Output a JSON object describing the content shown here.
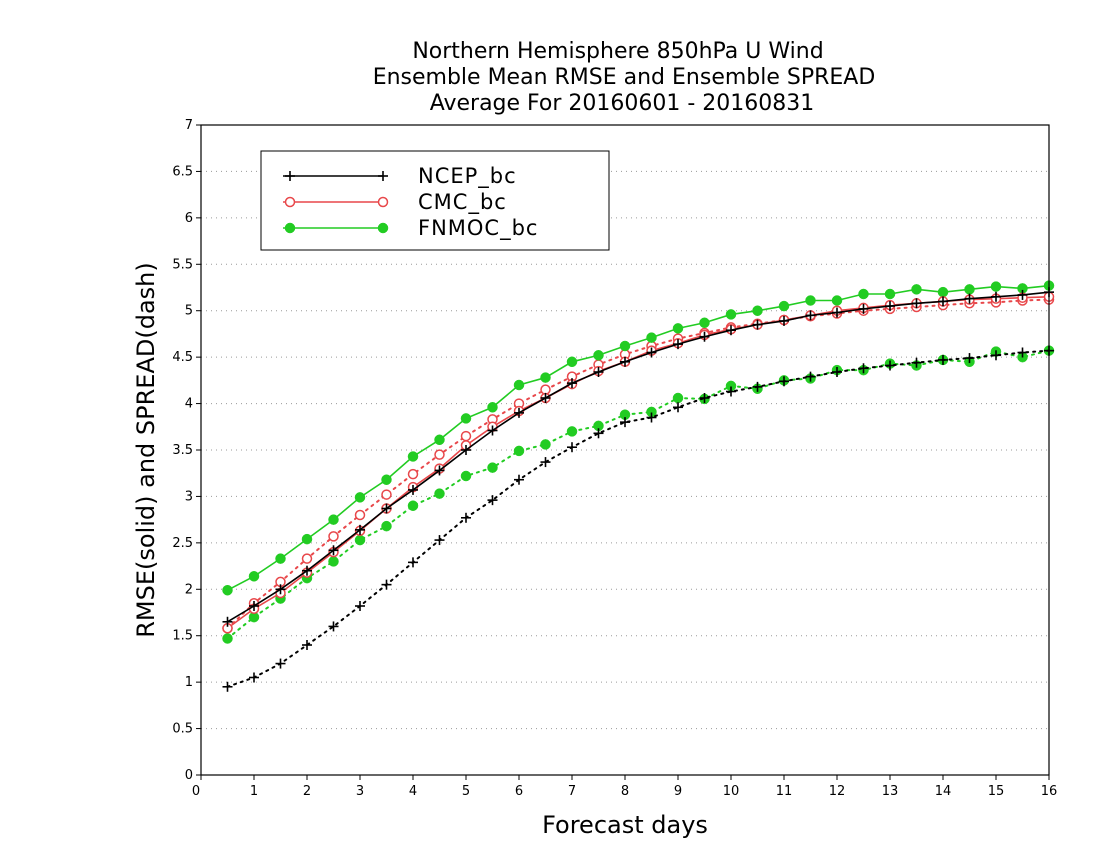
{
  "chart_data": {
    "type": "line",
    "title_lines": [
      "Northern Hemisphere 850hPa U Wind",
      "Ensemble Mean RMSE and Ensemble SPREAD",
      "Average For 20160601 - 20160831"
    ],
    "xlabel": "Forecast days",
    "ylabel": "RMSE(solid) and SPREAD(dash)",
    "xlim": [
      0,
      16
    ],
    "ylim": [
      0,
      7
    ],
    "x_ticks": [
      "0",
      "1",
      "2",
      "3",
      "4",
      "5",
      "6",
      "7",
      "8",
      "9",
      "10",
      "11",
      "12",
      "13",
      "14",
      "15",
      "16"
    ],
    "y_ticks": [
      "0",
      "0.5",
      "1",
      "1.5",
      "2",
      "2.5",
      "3",
      "3.5",
      "4",
      "4.5",
      "5",
      "5.5",
      "6",
      "6.5",
      "7"
    ],
    "grid": "horizontal dotted",
    "legend_position": "top-left",
    "x": [
      0.5,
      1,
      1.5,
      2,
      2.5,
      3,
      3.5,
      4,
      4.5,
      5,
      5.5,
      6,
      6.5,
      7,
      7.5,
      8,
      8.5,
      9,
      9.5,
      10,
      10.5,
      11,
      11.5,
      12,
      12.5,
      13,
      13.5,
      14,
      14.5,
      15,
      15.5,
      16
    ],
    "series": [
      {
        "name": "NCEP_bc",
        "color": "#000000",
        "marker": "plus",
        "rmse": [
          1.65,
          1.82,
          2.0,
          2.2,
          2.42,
          2.64,
          2.87,
          3.07,
          3.28,
          3.5,
          3.71,
          3.9,
          4.06,
          4.22,
          4.34,
          4.45,
          4.55,
          4.64,
          4.72,
          4.79,
          4.85,
          4.89,
          4.95,
          4.98,
          5.02,
          5.05,
          5.08,
          5.1,
          5.13,
          5.15,
          5.17,
          5.2
        ],
        "spread": [
          0.95,
          1.05,
          1.2,
          1.4,
          1.6,
          1.82,
          2.05,
          2.29,
          2.53,
          2.77,
          2.96,
          3.18,
          3.37,
          3.53,
          3.68,
          3.8,
          3.85,
          3.96,
          4.06,
          4.13,
          4.18,
          4.24,
          4.29,
          4.34,
          4.38,
          4.41,
          4.44,
          4.47,
          4.49,
          4.52,
          4.55,
          4.57
        ]
      },
      {
        "name": "CMC_bc",
        "color": "#e8474a",
        "marker": "open-circle",
        "rmse": [
          1.58,
          1.79,
          1.96,
          2.18,
          2.4,
          2.63,
          2.87,
          3.1,
          3.3,
          3.55,
          3.75,
          3.92,
          4.06,
          4.21,
          4.35,
          4.45,
          4.57,
          4.65,
          4.74,
          4.8,
          4.85,
          4.9,
          4.95,
          5.0,
          5.03,
          5.06,
          5.08,
          5.1,
          5.12,
          5.13,
          5.14,
          5.15
        ],
        "spread": [
          1.58,
          1.85,
          2.08,
          2.33,
          2.57,
          2.8,
          3.02,
          3.24,
          3.45,
          3.65,
          3.83,
          4.0,
          4.15,
          4.29,
          4.42,
          4.53,
          4.62,
          4.7,
          4.76,
          4.82,
          4.86,
          4.9,
          4.94,
          4.97,
          5.0,
          5.02,
          5.04,
          5.06,
          5.08,
          5.09,
          5.11,
          5.12
        ]
      },
      {
        "name": "FNMOC_bc",
        "color": "#22cc22",
        "marker": "filled-circle",
        "rmse": [
          1.99,
          2.14,
          2.33,
          2.54,
          2.75,
          2.99,
          3.18,
          3.43,
          3.61,
          3.84,
          3.96,
          4.2,
          4.28,
          4.45,
          4.52,
          4.62,
          4.71,
          4.81,
          4.87,
          4.96,
          5.0,
          5.05,
          5.11,
          5.11,
          5.18,
          5.18,
          5.23,
          5.2,
          5.23,
          5.26,
          5.24,
          5.27
        ],
        "spread": [
          1.47,
          1.7,
          1.9,
          2.12,
          2.3,
          2.53,
          2.68,
          2.9,
          3.03,
          3.22,
          3.31,
          3.49,
          3.56,
          3.7,
          3.76,
          3.88,
          3.91,
          4.06,
          4.05,
          4.19,
          4.16,
          4.25,
          4.27,
          4.36,
          4.36,
          4.43,
          4.41,
          4.47,
          4.45,
          4.56,
          4.5,
          4.57
        ]
      }
    ]
  }
}
